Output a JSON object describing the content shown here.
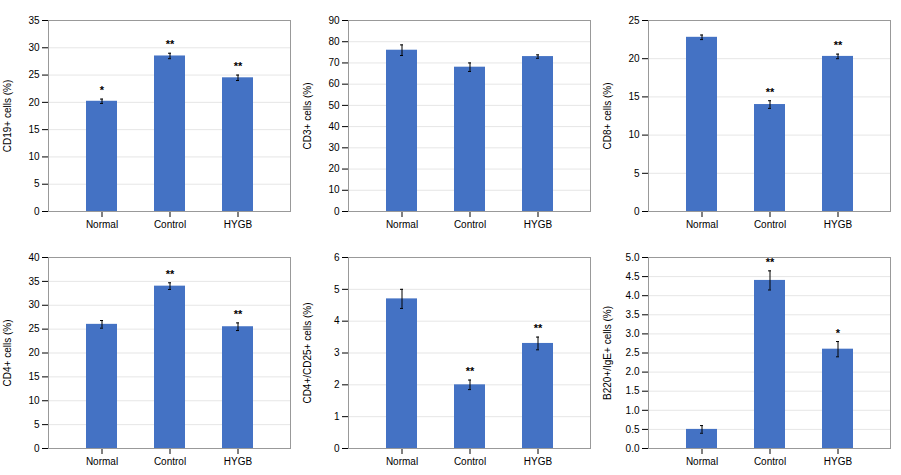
{
  "chart_data": [
    {
      "type": "bar",
      "ylabel": "CD19+ cells (%)",
      "categories": [
        "Normal",
        "Control",
        "HYGB"
      ],
      "values": [
        20.2,
        28.5,
        24.5
      ],
      "errors": [
        0.4,
        0.5,
        0.5
      ],
      "annotations": [
        {
          "category": "Normal",
          "text": "*"
        },
        {
          "category": "Control",
          "text": "**"
        },
        {
          "category": "HYGB",
          "text": "**"
        }
      ],
      "color": "#4472C4",
      "ylim": [
        0,
        35
      ],
      "yticks": [
        0,
        5,
        10,
        15,
        20,
        25,
        30,
        35
      ],
      "grid": true
    },
    {
      "type": "bar",
      "ylabel": "CD3+ cells (%)",
      "categories": [
        "Normal",
        "Control",
        "HYGB"
      ],
      "values": [
        76.0,
        68.0,
        73.0
      ],
      "errors": [
        2.5,
        2.0,
        0.8
      ],
      "color": "#4472C4",
      "ylim": [
        0,
        90
      ],
      "yticks": [
        0,
        10,
        20,
        30,
        40,
        50,
        60,
        70,
        80,
        90
      ],
      "grid": true
    },
    {
      "type": "bar",
      "ylabel": "CD8+ cells (%)",
      "categories": [
        "Normal",
        "Control",
        "HYGB"
      ],
      "values": [
        22.8,
        14.0,
        20.3
      ],
      "errors": [
        0.3,
        0.5,
        0.3
      ],
      "annotations": [
        {
          "category": "Control",
          "text": "**"
        },
        {
          "category": "HYGB",
          "text": "**"
        }
      ],
      "color": "#4472C4",
      "ylim": [
        0,
        25
      ],
      "yticks": [
        0,
        5,
        10,
        15,
        20,
        25
      ],
      "grid": true
    },
    {
      "type": "bar",
      "ylabel": "CD4+ cells (%)",
      "categories": [
        "Normal",
        "Control",
        "HYGB"
      ],
      "values": [
        26.0,
        34.0,
        25.5
      ],
      "errors": [
        0.8,
        0.7,
        0.8
      ],
      "annotations": [
        {
          "category": "Control",
          "text": "**"
        },
        {
          "category": "HYGB",
          "text": "**"
        }
      ],
      "color": "#4472C4",
      "ylim": [
        0,
        40
      ],
      "yticks": [
        0,
        5,
        10,
        15,
        20,
        25,
        30,
        35,
        40
      ],
      "grid": true
    },
    {
      "type": "bar",
      "ylabel": "CD4+/CD25+ cells (%)",
      "categories": [
        "Normal",
        "Control",
        "HYGB"
      ],
      "values": [
        4.7,
        2.0,
        3.3
      ],
      "errors": [
        0.3,
        0.15,
        0.2
      ],
      "annotations": [
        {
          "category": "Control",
          "text": "**"
        },
        {
          "category": "HYGB",
          "text": "**"
        }
      ],
      "color": "#4472C4",
      "ylim": [
        0,
        6
      ],
      "yticks": [
        0,
        1,
        2,
        3,
        4,
        5,
        6
      ],
      "grid": true
    },
    {
      "type": "bar",
      "ylabel": "B220+/IgE+ cells (%)",
      "categories": [
        "Normal",
        "Control",
        "HYGB"
      ],
      "values": [
        0.5,
        4.4,
        2.6
      ],
      "errors": [
        0.1,
        0.25,
        0.2
      ],
      "annotations": [
        {
          "category": "Control",
          "text": "**"
        },
        {
          "category": "HYGB",
          "text": "*"
        }
      ],
      "color": "#4472C4",
      "ylim": [
        0,
        5
      ],
      "yticks": [
        {
          "value": 0,
          "label": "0.0"
        },
        0.5,
        {
          "value": 1,
          "label": "1.0"
        },
        1.5,
        {
          "value": 2,
          "label": "2.0"
        },
        2.5,
        {
          "value": 3,
          "label": "3.0"
        },
        3.5,
        {
          "value": 4,
          "label": "4.0"
        },
        4.5,
        {
          "value": 5,
          "label": "5.0"
        }
      ],
      "grid": true
    }
  ]
}
